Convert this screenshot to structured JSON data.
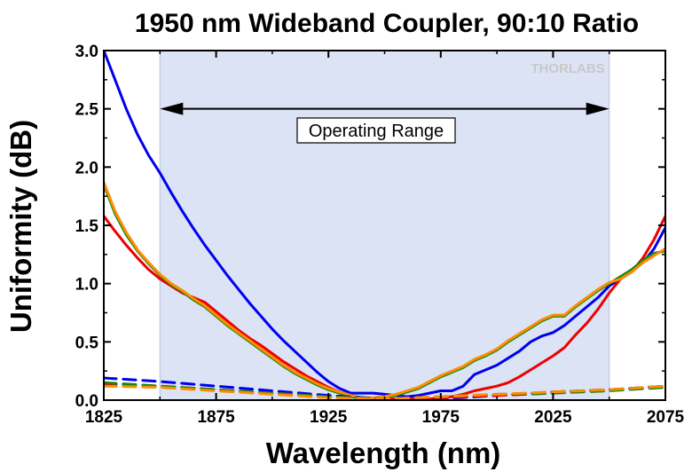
{
  "chart_data": {
    "type": "line",
    "title": "1950 nm Wideband Coupler, 90:10 Ratio",
    "xlabel": "Wavelength (nm)",
    "ylabel": "Uniformity (dB)",
    "xlim": [
      1825,
      2075
    ],
    "ylim": [
      0,
      3.0
    ],
    "xticks": [
      1825,
      1875,
      1925,
      1975,
      2025,
      2075
    ],
    "xtick_labels": [
      "1825",
      "1875",
      "1925",
      "1975",
      "2025",
      "2075"
    ],
    "yticks": [
      0,
      0.5,
      1.0,
      1.5,
      2.0,
      2.5,
      3.0
    ],
    "ytick_labels": [
      "0.0",
      "0.5",
      "1.0",
      "1.5",
      "2.0",
      "2.5",
      "3.0"
    ],
    "grid": false,
    "logo": "THORLABS",
    "operating_range": {
      "start": 1850,
      "end": 2050,
      "y": 2.5,
      "label": "Operating Range",
      "shade_color": "#dbe3f5"
    },
    "series": [
      {
        "color": "#0000ee",
        "dash": "solid",
        "x": [
          1825,
          1830,
          1835,
          1840,
          1845,
          1850,
          1855,
          1860,
          1865,
          1870,
          1875,
          1880,
          1885,
          1890,
          1895,
          1900,
          1905,
          1910,
          1915,
          1920,
          1925,
          1930,
          1935,
          1940,
          1945,
          1950,
          1955,
          1960,
          1965,
          1970,
          1975,
          1980,
          1985,
          1990,
          1995,
          2000,
          2005,
          2010,
          2015,
          2020,
          2025,
          2030,
          2035,
          2040,
          2045,
          2050,
          2055,
          2060,
          2065,
          2070,
          2075
        ],
        "y": [
          3.0,
          2.75,
          2.5,
          2.28,
          2.1,
          1.95,
          1.78,
          1.62,
          1.47,
          1.33,
          1.2,
          1.07,
          0.95,
          0.83,
          0.72,
          0.61,
          0.51,
          0.42,
          0.33,
          0.24,
          0.16,
          0.1,
          0.06,
          0.06,
          0.06,
          0.05,
          0.04,
          0.03,
          0.04,
          0.06,
          0.08,
          0.08,
          0.12,
          0.22,
          0.26,
          0.3,
          0.36,
          0.42,
          0.5,
          0.55,
          0.58,
          0.64,
          0.72,
          0.8,
          0.88,
          0.98,
          1.04,
          1.1,
          1.18,
          1.3,
          1.48
        ]
      },
      {
        "color": "#ee0000",
        "dash": "solid",
        "x": [
          1825,
          1830,
          1835,
          1840,
          1845,
          1850,
          1855,
          1860,
          1865,
          1870,
          1875,
          1880,
          1885,
          1890,
          1895,
          1900,
          1905,
          1910,
          1915,
          1920,
          1925,
          1930,
          1935,
          1940,
          1945,
          1950,
          1955,
          1960,
          1965,
          1970,
          1975,
          1980,
          1985,
          1990,
          1995,
          2000,
          2005,
          2010,
          2015,
          2020,
          2025,
          2030,
          2035,
          2040,
          2045,
          2050,
          2055,
          2060,
          2065,
          2070,
          2075
        ],
        "y": [
          1.58,
          1.45,
          1.33,
          1.22,
          1.12,
          1.04,
          0.98,
          0.92,
          0.88,
          0.84,
          0.76,
          0.68,
          0.6,
          0.53,
          0.47,
          0.4,
          0.33,
          0.27,
          0.21,
          0.16,
          0.11,
          0.07,
          0.04,
          0.02,
          0.01,
          0.01,
          0.01,
          0.01,
          0.01,
          0.01,
          0.02,
          0.03,
          0.05,
          0.08,
          0.1,
          0.12,
          0.15,
          0.2,
          0.26,
          0.32,
          0.38,
          0.45,
          0.56,
          0.66,
          0.78,
          0.92,
          1.04,
          1.1,
          1.22,
          1.38,
          1.58
        ]
      },
      {
        "color": "#118811",
        "dash": "solid",
        "x": [
          1825,
          1830,
          1835,
          1840,
          1845,
          1850,
          1855,
          1860,
          1865,
          1870,
          1875,
          1880,
          1885,
          1890,
          1895,
          1900,
          1905,
          1910,
          1915,
          1920,
          1925,
          1930,
          1935,
          1940,
          1945,
          1950,
          1955,
          1960,
          1965,
          1970,
          1975,
          1980,
          1985,
          1990,
          1995,
          2000,
          2005,
          2010,
          2015,
          2020,
          2025,
          2030,
          2035,
          2040,
          2045,
          2050,
          2055,
          2060,
          2065,
          2070,
          2075
        ],
        "y": [
          1.85,
          1.6,
          1.42,
          1.28,
          1.17,
          1.07,
          0.99,
          0.93,
          0.86,
          0.8,
          0.72,
          0.64,
          0.57,
          0.5,
          0.43,
          0.36,
          0.29,
          0.23,
          0.18,
          0.13,
          0.09,
          0.06,
          0.03,
          0.01,
          0.01,
          0.02,
          0.04,
          0.07,
          0.1,
          0.15,
          0.2,
          0.24,
          0.28,
          0.34,
          0.38,
          0.43,
          0.5,
          0.56,
          0.62,
          0.68,
          0.72,
          0.72,
          0.8,
          0.87,
          0.94,
          1.0,
          1.06,
          1.12,
          1.2,
          1.26,
          1.28
        ]
      },
      {
        "color": "#ff8c00",
        "dash": "solid",
        "x": [
          1825,
          1830,
          1835,
          1840,
          1845,
          1850,
          1855,
          1860,
          1865,
          1870,
          1875,
          1880,
          1885,
          1890,
          1895,
          1900,
          1905,
          1910,
          1915,
          1920,
          1925,
          1930,
          1935,
          1940,
          1945,
          1950,
          1955,
          1960,
          1965,
          1970,
          1975,
          1980,
          1985,
          1990,
          1995,
          2000,
          2005,
          2010,
          2015,
          2020,
          2025,
          2030,
          2035,
          2040,
          2045,
          2050,
          2055,
          2060,
          2065,
          2070,
          2075
        ],
        "y": [
          1.87,
          1.62,
          1.44,
          1.29,
          1.18,
          1.08,
          1.0,
          0.94,
          0.87,
          0.81,
          0.73,
          0.65,
          0.58,
          0.51,
          0.44,
          0.37,
          0.3,
          0.24,
          0.19,
          0.14,
          0.1,
          0.07,
          0.04,
          0.02,
          0.02,
          0.03,
          0.05,
          0.08,
          0.11,
          0.16,
          0.21,
          0.25,
          0.29,
          0.35,
          0.39,
          0.44,
          0.51,
          0.57,
          0.63,
          0.69,
          0.73,
          0.73,
          0.81,
          0.88,
          0.95,
          1.01,
          1.04,
          1.1,
          1.18,
          1.24,
          1.3
        ]
      },
      {
        "color": "#0000ee",
        "dash": "dashed",
        "x": [
          1825,
          1850,
          1875,
          1900,
          1925,
          1950,
          1975,
          2000,
          2025,
          2050,
          2075
        ],
        "y": [
          0.19,
          0.16,
          0.12,
          0.08,
          0.04,
          0.01,
          0.01,
          0.04,
          0.07,
          0.09,
          0.12
        ]
      },
      {
        "color": "#ee0000",
        "dash": "dashed",
        "x": [
          1825,
          1850,
          1875,
          1900,
          1925,
          1950,
          1975,
          2000,
          2025,
          2050,
          2075
        ],
        "y": [
          0.14,
          0.12,
          0.09,
          0.06,
          0.03,
          0.01,
          0.02,
          0.04,
          0.06,
          0.09,
          0.11
        ]
      },
      {
        "color": "#118811",
        "dash": "dashed",
        "x": [
          1825,
          1850,
          1875,
          1900,
          1925,
          1950,
          1975,
          2000,
          2025,
          2050,
          2075
        ],
        "y": [
          0.15,
          0.12,
          0.09,
          0.06,
          0.03,
          0.01,
          0.03,
          0.05,
          0.06,
          0.08,
          0.11
        ]
      },
      {
        "color": "#ff8c00",
        "dash": "dashed",
        "x": [
          1825,
          1850,
          1875,
          1900,
          1925,
          1950,
          1975,
          2000,
          2025,
          2050,
          2075
        ],
        "y": [
          0.12,
          0.11,
          0.08,
          0.05,
          0.02,
          0.01,
          0.03,
          0.05,
          0.07,
          0.09,
          0.12
        ]
      }
    ]
  }
}
